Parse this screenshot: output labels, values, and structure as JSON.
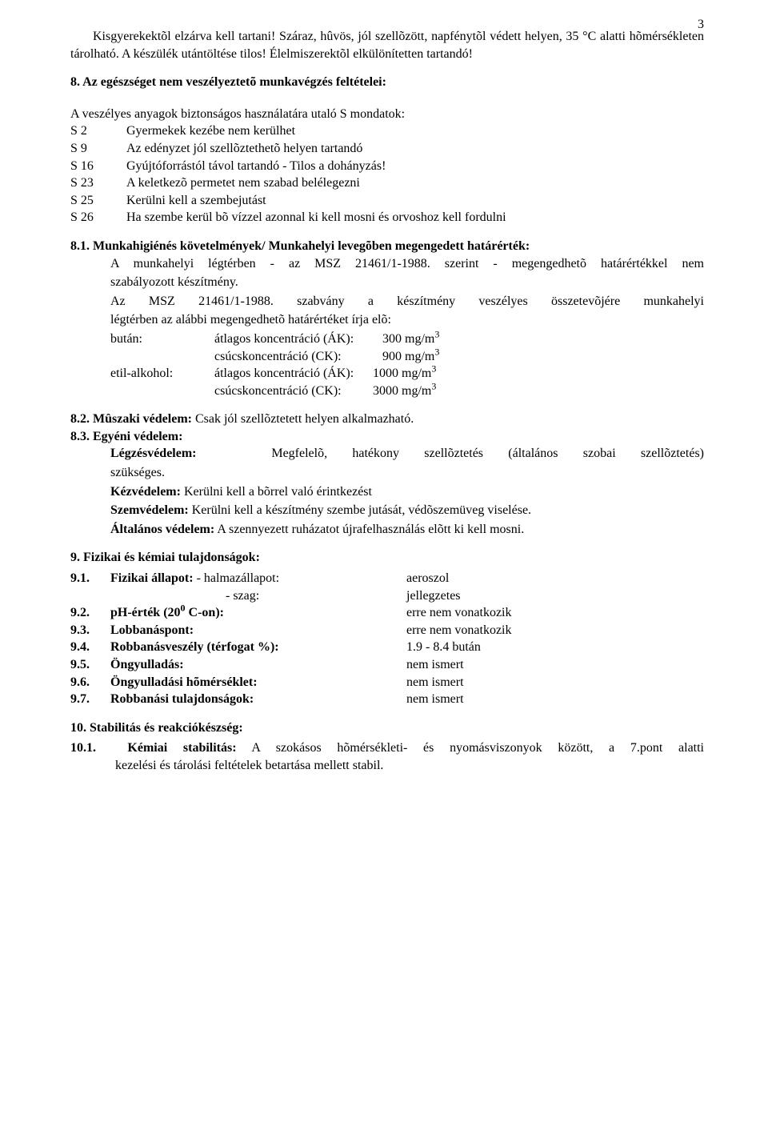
{
  "page_number": "3",
  "storage_para": "Kisgyerekektõl elzárva kell tartani! Száraz, hûvös, jól szellõzött, napfénytõl védett helyen, 35 °C alatti hõmérsékleten tárolható. A készülék utántöltése tilos! Élelmiszerektõl elkülönítetten tartandó!",
  "section8": {
    "heading": "8. Az egészséget nem veszélyeztetõ munkavégzés feltételei:",
    "intro": "A veszélyes anyagok biztonságos használatára utaló S mondatok:",
    "s_phrases": [
      {
        "code": "S 2",
        "text": "Gyermekek kezébe nem kerülhet"
      },
      {
        "code": "S 9",
        "text": "Az edényzet jól szellõztethetõ helyen tartandó"
      },
      {
        "code": "S 16",
        "text": "Gyújtóforrástól távol tartandó - Tilos a dohányzás!"
      },
      {
        "code": "S 23",
        "text": "A keletkezõ permetet nem szabad belélegezni"
      },
      {
        "code": "S 25",
        "text": "Kerülni kell a szembejutást"
      },
      {
        "code": "S 26",
        "text": "Ha szembe kerül bõ vízzel azonnal ki kell mosni és orvoshoz kell fordulni"
      }
    ],
    "s81": {
      "num": "8.1.",
      "title": "Munkahigiénés követelmények/ Munkahelyi levegõben megengedett határérték:",
      "body1": "A munkahelyi légtérben - az MSZ 21461/1-1988. szerint -  megengedhetõ határértékkel nem",
      "body1b": "szabályozott készítmény.",
      "body2": "Az  MSZ  21461/1-1988.  szabvány  a  készítmény  veszélyes  összetevõjére  munkahelyi",
      "body2b": "légtérben az alábbi megengedhetõ határértéket írja elõ:",
      "conc": [
        {
          "substance": "bután:",
          "label": "átlagos koncentráció (ÁK):",
          "val": "300 mg/m",
          "sup": "3",
          "val_pad": "210px"
        },
        {
          "substance": "",
          "label": "csúcskoncentráció (CK):",
          "val": "900 mg/m",
          "sup": "3",
          "val_pad": "210px"
        },
        {
          "substance": "etil-alkohol:",
          "label": "átlagos koncentráció (ÁK):",
          "val": "1000 mg/m",
          "sup": "3",
          "val_pad": "198px"
        },
        {
          "substance": "",
          "label": "csúcskoncentráció (CK):",
          "val": "3000 mg/m",
          "sup": "3",
          "val_pad": "198px"
        }
      ]
    },
    "s82": {
      "num": "8.2.",
      "title": "Mûszaki védelem:",
      "text": " Csak jól szellõztetett helyen alkalmazható."
    },
    "s83": {
      "num": "8.3.",
      "title": "Egyéni védelem:",
      "legz_label": "Légzésvédelem:",
      "legz_mid": "Megfelelõ,   hatékony   szellõztetés   (általános   szobai   szellõztetés)",
      "legz_end": "szükséges.",
      "kez": "Kézvédelem:",
      "kez_text": " Kerülni kell a bõrrel való érintkezést",
      "szem": "Szemvédelem:",
      "szem_text": " Kerülni kell a készítmény szembe jutását, védõszemüveg viselése.",
      "alt": "Általános védelem:",
      "alt_text": " A szennyezett ruházatot újrafelhasználás elõtt ki kell mosni."
    }
  },
  "section9": {
    "heading": "9.  Fizikai és kémiai tulajdonságok:",
    "rows": [
      {
        "num": "9.1.",
        "label": "<b>Fizikai állapot:</b>  - halmazállapot:",
        "val": "aeroszol"
      },
      {
        "num": "",
        "label": "                               - szag:",
        "val": "jellegzetes",
        "label_pad": "144px"
      },
      {
        "num": "9.2.",
        "label": "<b>pH-érték (20<sup>0</sup> C-on):</b>",
        "val": "erre nem vonatkozik"
      },
      {
        "num": "9.3.",
        "label": "<b>Lobbanáspont:</b>",
        "val": "erre nem vonatkozik"
      },
      {
        "num": "9.4.",
        "label": "<b>Robbanásveszély (térfogat %):</b>",
        "val": "1.9 - 8.4 bután"
      },
      {
        "num": "9.5.",
        "label": "<b>Öngyulladás:</b>",
        "val": "nem ismert"
      },
      {
        "num": "9.6.",
        "label": "<b>Öngyulladási hõmérséklet:</b>",
        "val": "nem ismert"
      },
      {
        "num": "9.7.",
        "label": "<b>Robbanási tulajdonságok:</b>",
        "val": "nem ismert"
      }
    ]
  },
  "section10": {
    "heading": "10. Stabilitás és reakciókészség:",
    "s101_num": "10.1.",
    "s101_title": "Kémiai stabilitás:",
    "s101_body1": "A  szokásos  hõmérsékleti-  és  nyomásviszonyok  között,  a  7.pont  alatti",
    "s101_body2": "kezelési és tárolási feltételek betartása mellett stabil."
  }
}
